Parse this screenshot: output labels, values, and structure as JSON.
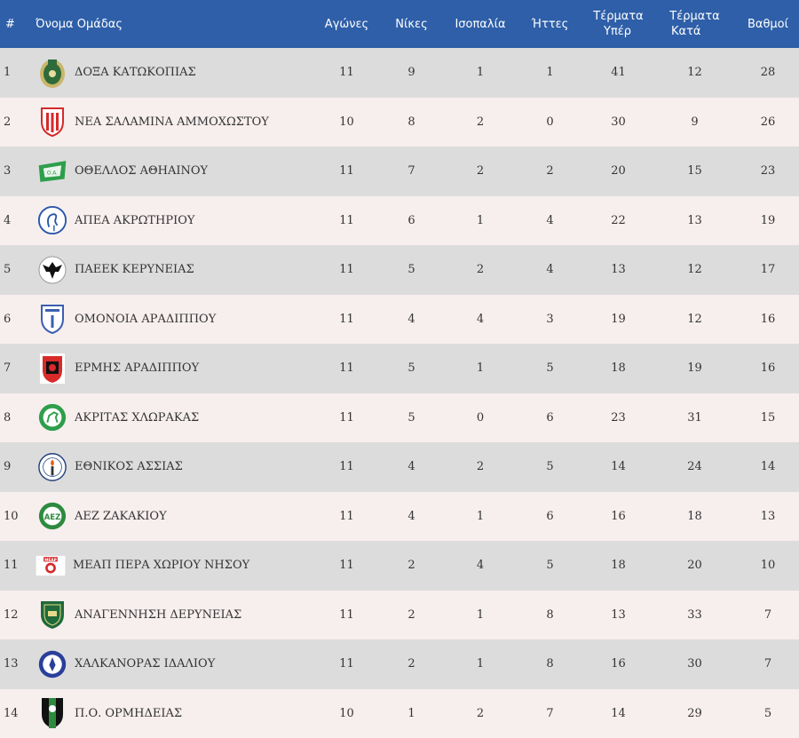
{
  "headers": {
    "pos": "#",
    "team": "Όνομα Ομάδας",
    "played": "Αγώνες",
    "wins": "Νίκες",
    "draws": "Ισοπαλία",
    "losses": "Ήττες",
    "gf_line1": "Τέρματα",
    "gf_line2": "Υπέρ",
    "ga_line1": "Τέρματα",
    "ga_line2": "Κατά",
    "points": "Βαθμοί"
  },
  "colors": {
    "header_bg": "#2e5fa8",
    "row_odd": "#dcdcdc",
    "row_even": "#f7eeee"
  },
  "rows": [
    {
      "pos": "1",
      "team": "ΔΟΞΑ ΚΑΤΩΚΟΠΙΑΣ",
      "played": "11",
      "wins": "9",
      "draws": "1",
      "losses": "1",
      "gf": "41",
      "ga": "12",
      "points": "28",
      "logo": "doxa-crest"
    },
    {
      "pos": "2",
      "team": "ΝΕΑ ΣΑΛΑΜΙΝΑ ΑΜΜΟΧΩΣΤΟΥ",
      "played": "10",
      "wins": "8",
      "draws": "2",
      "losses": "0",
      "gf": "30",
      "ga": "9",
      "points": "26",
      "logo": "nea-salamina-shield"
    },
    {
      "pos": "3",
      "team": "ΟΘΕΛΛΟΣ ΑΘΗΑΙΝΟΥ",
      "played": "11",
      "wins": "7",
      "draws": "2",
      "losses": "2",
      "gf": "20",
      "ga": "15",
      "points": "23",
      "logo": "othellos-badge"
    },
    {
      "pos": "4",
      "team": "ΑΠΕΑ ΑΚΡΩΤΗΡΙΟΥ",
      "played": "11",
      "wins": "6",
      "draws": "1",
      "losses": "4",
      "gf": "22",
      "ga": "13",
      "points": "19",
      "logo": "apea-flamingo"
    },
    {
      "pos": "5",
      "team": "ΠΑΕΕΚ ΚΕΡΥΝΕΙΑΣ",
      "played": "11",
      "wins": "5",
      "draws": "2",
      "losses": "4",
      "gf": "13",
      "ga": "12",
      "points": "17",
      "logo": "paeek-eagle"
    },
    {
      "pos": "6",
      "team": "ΟΜΟΝΟΙΑ ΑΡΑΔΙΠΠΟΥ",
      "played": "11",
      "wins": "4",
      "draws": "4",
      "losses": "3",
      "gf": "19",
      "ga": "12",
      "points": "16",
      "logo": "omonoia-shield"
    },
    {
      "pos": "7",
      "team": "ΕΡΜΗΣ ΑΡΑΔΙΠΠΟΥ",
      "played": "11",
      "wins": "5",
      "draws": "1",
      "losses": "5",
      "gf": "18",
      "ga": "19",
      "points": "16",
      "logo": "ermis-shield"
    },
    {
      "pos": "8",
      "team": "ΑΚΡΙΤΑΣ ΧΛΩΡΑΚΑΣ",
      "played": "11",
      "wins": "5",
      "draws": "0",
      "losses": "6",
      "gf": "23",
      "ga": "31",
      "points": "15",
      "logo": "akritas-horse"
    },
    {
      "pos": "9",
      "team": "ΕΘΝΙΚΟΣ ΑΣΣΙΑΣ",
      "played": "11",
      "wins": "4",
      "draws": "2",
      "losses": "5",
      "gf": "14",
      "ga": "24",
      "points": "14",
      "logo": "ethnikos-torch"
    },
    {
      "pos": "10",
      "team": "ΑΕΖ ΖΑΚΑΚΙΟΥ",
      "played": "11",
      "wins": "4",
      "draws": "1",
      "losses": "6",
      "gf": "16",
      "ga": "18",
      "points": "13",
      "logo": "aez-roundel"
    },
    {
      "pos": "11",
      "team": "ΜΕΑΠ ΠΕΡΑ ΧΩΡΙΟΥ ΝΗΣΟΥ",
      "played": "11",
      "wins": "2",
      "draws": "4",
      "losses": "5",
      "gf": "18",
      "ga": "20",
      "points": "10",
      "logo": "meap-badge"
    },
    {
      "pos": "12",
      "team": "ΑΝΑΓΕΝΝΗΣΗ ΔΕΡΥΝΕΙΑΣ",
      "played": "11",
      "wins": "2",
      "draws": "1",
      "losses": "8",
      "gf": "13",
      "ga": "33",
      "points": "7",
      "logo": "anagennisi-shield"
    },
    {
      "pos": "13",
      "team": "ΧΑΛΚΑΝΟΡΑΣ ΙΔΑΛΙΟΥ",
      "played": "11",
      "wins": "2",
      "draws": "1",
      "losses": "8",
      "gf": "16",
      "ga": "30",
      "points": "7",
      "logo": "chalkanoras-roundel"
    },
    {
      "pos": "14",
      "team": "Π.Ο. ΟΡΜΗΔΕΙΑΣ",
      "played": "10",
      "wins": "1",
      "draws": "2",
      "losses": "7",
      "gf": "14",
      "ga": "29",
      "points": "5",
      "logo": "ormideia-shield"
    }
  ]
}
